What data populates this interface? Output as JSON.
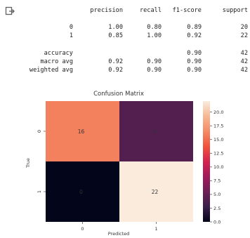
{
  "output_icon": "output-arrow-icon",
  "report": {
    "headers": [
      "precision",
      "recall",
      "f1-score",
      "support"
    ],
    "rows": [
      {
        "label": "0",
        "precision": "1.00",
        "recall": "0.80",
        "f1": "0.89",
        "support": "20"
      },
      {
        "label": "1",
        "precision": "0.85",
        "recall": "1.00",
        "f1": "0.92",
        "support": "22"
      },
      {
        "label": "accuracy",
        "precision": "",
        "recall": "",
        "f1": "0.90",
        "support": "42"
      },
      {
        "label": "macro avg",
        "precision": "0.92",
        "recall": "0.90",
        "f1": "0.90",
        "support": "42"
      },
      {
        "label": "weighted avg",
        "precision": "0.92",
        "recall": "0.90",
        "f1": "0.90",
        "support": "42"
      }
    ]
  },
  "chart_data": {
    "type": "heatmap",
    "title": "Confusion Matrix",
    "xlabel": "Predicted",
    "ylabel": "True",
    "x_ticks": [
      "0",
      "1"
    ],
    "y_ticks": [
      "0",
      "1"
    ],
    "matrix": [
      [
        16,
        4
      ],
      [
        0,
        22
      ]
    ],
    "colorbar": {
      "min": 0,
      "max": 22,
      "ticks": [
        "0.0",
        "2.5",
        "5.0",
        "7.5",
        "10.0",
        "12.5",
        "15.0",
        "17.5",
        "20.0"
      ],
      "colormap": "rocket",
      "colors": [
        "#03051a",
        "#3b1f4a",
        "#6d1f56",
        "#a11a5b",
        "#d4234f",
        "#f0533c",
        "#f58b66",
        "#f6b894",
        "#faebdd"
      ]
    }
  }
}
